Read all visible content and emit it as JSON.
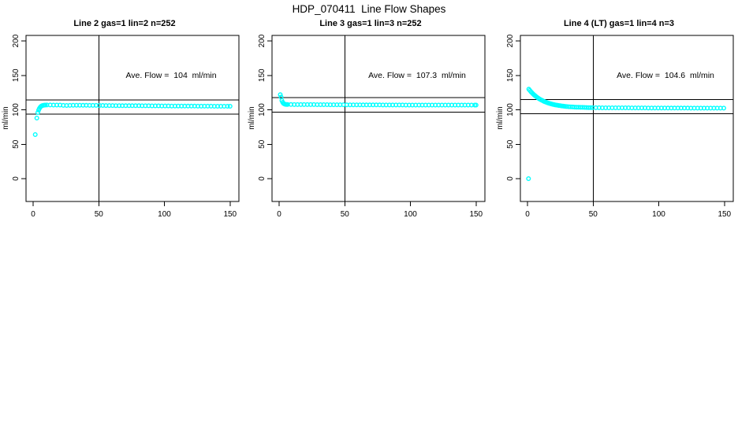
{
  "page": {
    "title": "HDP_070411  Line Flow Shapes"
  },
  "axes": {
    "ylabel": "ml/min",
    "xticks": [
      0,
      50,
      100,
      150
    ],
    "yticks": [
      0,
      50,
      100,
      150,
      200
    ]
  },
  "colors": {
    "points": "#00FFFF",
    "axis": "#000000",
    "background": "#FFFFFF"
  },
  "chart_data": [
    {
      "type": "scatter",
      "title": "Line 2 gas=1 lin=2 n=252",
      "annotation": "Ave. Flow =  104  ml/min",
      "ave_flow": 104,
      "units": "ml/min",
      "n": 252,
      "xlim": [
        -5,
        157
      ],
      "ylim": [
        -33,
        208
      ],
      "ref_lines": {
        "vertical_x": 50,
        "horizontal_y": [
          114.4,
          93.6
        ]
      },
      "points": [
        [
          1.6,
          64
        ],
        [
          2.8,
          88
        ],
        [
          3.6,
          96
        ],
        [
          4.2,
          99.5
        ],
        [
          4.8,
          102
        ],
        [
          5.4,
          103.8
        ],
        [
          6,
          105
        ],
        [
          6.8,
          105.9
        ],
        [
          7.6,
          106.4
        ],
        [
          8.4,
          106.7
        ],
        [
          9.2,
          106.9
        ],
        [
          10.5,
          107
        ],
        [
          13,
          107
        ],
        [
          15.5,
          106.9
        ],
        [
          18,
          106.9
        ],
        [
          20.5,
          106.8
        ],
        [
          23,
          106.4
        ],
        [
          25.5,
          106.3
        ],
        [
          28,
          106.4
        ],
        [
          30.5,
          106.6
        ],
        [
          33,
          106.6
        ],
        [
          35.5,
          106.6
        ],
        [
          38,
          106.5
        ],
        [
          40.5,
          106.5
        ],
        [
          43,
          106.4
        ],
        [
          45.5,
          106.4
        ],
        [
          48,
          106.4
        ],
        [
          50.5,
          106.3
        ],
        [
          53,
          106.3
        ],
        [
          55.5,
          106.2
        ],
        [
          58,
          106.2
        ],
        [
          60.5,
          106.2
        ],
        [
          63,
          106.1
        ],
        [
          65.5,
          106.1
        ],
        [
          68,
          106
        ],
        [
          70.5,
          106
        ],
        [
          73,
          106
        ],
        [
          75.5,
          105.9
        ],
        [
          78,
          105.9
        ],
        [
          80.5,
          105.9
        ],
        [
          83,
          105.8
        ],
        [
          85.5,
          105.8
        ],
        [
          88,
          105.8
        ],
        [
          90.5,
          105.7
        ],
        [
          93,
          105.7
        ],
        [
          95.5,
          105.7
        ],
        [
          98,
          105.6
        ],
        [
          100.5,
          105.6
        ],
        [
          103,
          105.6
        ],
        [
          105.5,
          105.5
        ],
        [
          108,
          105.5
        ],
        [
          110.5,
          105.5
        ],
        [
          113,
          105.5
        ],
        [
          115.5,
          105.4
        ],
        [
          118,
          105.4
        ],
        [
          120.5,
          105.4
        ],
        [
          123,
          105.4
        ],
        [
          125.5,
          105.3
        ],
        [
          128,
          105.3
        ],
        [
          130.5,
          105.3
        ],
        [
          133,
          105.3
        ],
        [
          135.5,
          105.3
        ],
        [
          138,
          105.2
        ],
        [
          140.5,
          105.2
        ],
        [
          143,
          105.2
        ],
        [
          145.5,
          105.2
        ],
        [
          148,
          105.2
        ],
        [
          150,
          105.2
        ]
      ]
    },
    {
      "type": "scatter",
      "title": "Line 3 gas=1 lin=3 n=252",
      "annotation": "Ave. Flow =  107.3  ml/min",
      "ave_flow": 107.3,
      "units": "ml/min",
      "n": 252,
      "xlim": [
        -5,
        157
      ],
      "ylim": [
        -33,
        208
      ],
      "ref_lines": {
        "vertical_x": 50,
        "horizontal_y": [
          118.0,
          96.6
        ]
      },
      "points": [
        [
          0.9,
          122
        ],
        [
          1.5,
          118.5
        ],
        [
          2.1,
          113.5
        ],
        [
          2.7,
          110.8
        ],
        [
          3.3,
          109.3
        ],
        [
          4,
          108.4
        ],
        [
          4.8,
          107.9
        ],
        [
          5.6,
          107.7
        ],
        [
          6.5,
          107.7
        ],
        [
          9,
          107.7
        ],
        [
          11.5,
          107.6
        ],
        [
          14,
          107.6
        ],
        [
          16.5,
          107.6
        ],
        [
          19,
          107.5
        ],
        [
          21.5,
          107.5
        ],
        [
          24,
          107.5
        ],
        [
          26.5,
          107.5
        ],
        [
          29,
          107.4
        ],
        [
          31.5,
          107.4
        ],
        [
          34,
          107.4
        ],
        [
          36.5,
          107.4
        ],
        [
          39,
          107.3
        ],
        [
          41.5,
          107.3
        ],
        [
          44,
          107.3
        ],
        [
          46.5,
          107.3
        ],
        [
          49,
          107.3
        ],
        [
          51.5,
          107.2
        ],
        [
          54,
          107.2
        ],
        [
          56.5,
          107.2
        ],
        [
          59,
          107.2
        ],
        [
          61.5,
          107.2
        ],
        [
          64,
          107.1
        ],
        [
          66.5,
          107.1
        ],
        [
          69,
          107.1
        ],
        [
          71.5,
          107.1
        ],
        [
          74,
          107.1
        ],
        [
          76.5,
          107.1
        ],
        [
          79,
          107
        ],
        [
          81.5,
          107
        ],
        [
          84,
          107
        ],
        [
          86.5,
          107
        ],
        [
          89,
          107
        ],
        [
          91.5,
          107
        ],
        [
          94,
          107
        ],
        [
          96.5,
          106.9
        ],
        [
          99,
          106.9
        ],
        [
          101.5,
          106.9
        ],
        [
          104,
          106.9
        ],
        [
          106.5,
          106.9
        ],
        [
          109,
          106.9
        ],
        [
          111.5,
          106.9
        ],
        [
          114,
          106.9
        ],
        [
          116.5,
          106.9
        ],
        [
          119,
          106.9
        ],
        [
          121.5,
          106.8
        ],
        [
          124,
          106.8
        ],
        [
          126.5,
          106.8
        ],
        [
          129,
          106.8
        ],
        [
          131.5,
          106.8
        ],
        [
          134,
          106.8
        ],
        [
          136.5,
          106.8
        ],
        [
          139,
          106.8
        ],
        [
          141.5,
          106.8
        ],
        [
          144,
          106.8
        ],
        [
          146.5,
          106.8
        ],
        [
          149,
          106.8
        ],
        [
          150,
          106.8
        ]
      ]
    },
    {
      "type": "scatter",
      "title": "Line 4 (LT) gas=1 lin=4 n=3",
      "annotation": "Ave. Flow =  104.6  ml/min",
      "ave_flow": 104.6,
      "units": "ml/min",
      "n": 3,
      "xlim": [
        -5,
        157
      ],
      "ylim": [
        -33,
        208
      ],
      "ref_lines": {
        "vertical_x": 50,
        "horizontal_y": [
          115.1,
          94.1
        ]
      },
      "points": [
        [
          0.8,
          0
        ],
        [
          1,
          130
        ],
        [
          1.8,
          128.1
        ],
        [
          2.6,
          126.3
        ],
        [
          3.4,
          124.7
        ],
        [
          4.2,
          123.1
        ],
        [
          5,
          121.7
        ],
        [
          5.8,
          120.4
        ],
        [
          6.6,
          119.2
        ],
        [
          7.4,
          118
        ],
        [
          8.2,
          116.9
        ],
        [
          9,
          115.9
        ],
        [
          9.8,
          115
        ],
        [
          10.6,
          114.2
        ],
        [
          11.4,
          113.4
        ],
        [
          12.2,
          112.6
        ],
        [
          13,
          111.9
        ],
        [
          13.8,
          111.3
        ],
        [
          14.6,
          110.7
        ],
        [
          15.4,
          110.2
        ],
        [
          16.2,
          109.6
        ],
        [
          17,
          109.1
        ],
        [
          17.8,
          108.7
        ],
        [
          18.6,
          108.3
        ],
        [
          19.4,
          107.9
        ],
        [
          20.2,
          107.5
        ],
        [
          21,
          107.2
        ],
        [
          22,
          106.8
        ],
        [
          23,
          106.5
        ],
        [
          24,
          106.2
        ],
        [
          25,
          105.9
        ],
        [
          26,
          105.6
        ],
        [
          27,
          105.4
        ],
        [
          28,
          105.1
        ],
        [
          29,
          104.9
        ],
        [
          30,
          104.7
        ],
        [
          31.5,
          104.5
        ],
        [
          33,
          104.3
        ],
        [
          34.5,
          104.1
        ],
        [
          36,
          103.9
        ],
        [
          37.5,
          103.8
        ],
        [
          39,
          103.7
        ],
        [
          40.5,
          103.6
        ],
        [
          42,
          103.5
        ],
        [
          43.5,
          103.4
        ],
        [
          45,
          103.3
        ],
        [
          46.5,
          103.2
        ],
        [
          48,
          103.2
        ],
        [
          49.5,
          103.1
        ],
        [
          52,
          103
        ],
        [
          54.5,
          103
        ],
        [
          57,
          102.9
        ],
        [
          59.5,
          102.9
        ],
        [
          62,
          102.9
        ],
        [
          64.5,
          102.9
        ],
        [
          67,
          102.8
        ],
        [
          69.5,
          102.8
        ],
        [
          72,
          102.8
        ],
        [
          74.5,
          102.8
        ],
        [
          77,
          102.8
        ],
        [
          79.5,
          102.7
        ],
        [
          82,
          102.7
        ],
        [
          84.5,
          102.7
        ],
        [
          87,
          102.7
        ],
        [
          89.5,
          102.7
        ],
        [
          92,
          102.6
        ],
        [
          94.5,
          102.6
        ],
        [
          97,
          102.6
        ],
        [
          99.5,
          102.6
        ],
        [
          102,
          102.6
        ],
        [
          104.5,
          102.6
        ],
        [
          107,
          102.5
        ],
        [
          109.5,
          102.5
        ],
        [
          112,
          102.5
        ],
        [
          114.5,
          102.5
        ],
        [
          117,
          102.5
        ],
        [
          119.5,
          102.5
        ],
        [
          122,
          102.5
        ],
        [
          124.5,
          102.4
        ],
        [
          127,
          102.4
        ],
        [
          129.5,
          102.4
        ],
        [
          132,
          102.4
        ],
        [
          134.5,
          102.4
        ],
        [
          137,
          102.4
        ],
        [
          139.5,
          102.4
        ],
        [
          142,
          102.4
        ],
        [
          144.5,
          102.4
        ],
        [
          147,
          102.4
        ],
        [
          149.5,
          102.4
        ]
      ]
    }
  ]
}
